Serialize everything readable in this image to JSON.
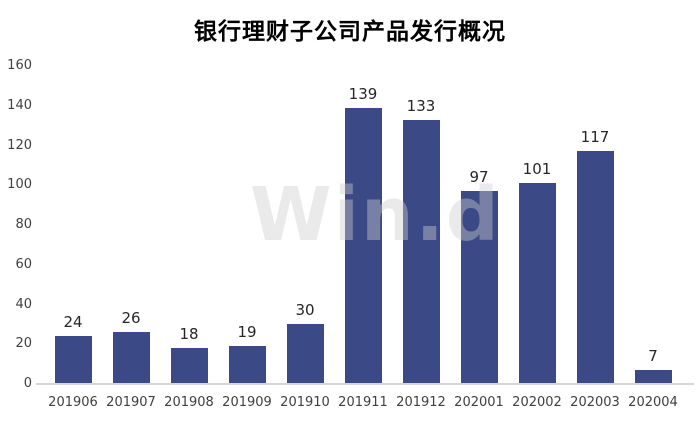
{
  "chart_data": {
    "type": "bar",
    "title": "银行理财子公司产品发行概况",
    "categories": [
      "201906",
      "201907",
      "201908",
      "201909",
      "201910",
      "201911",
      "201912",
      "202001",
      "202002",
      "202003",
      "202004"
    ],
    "values": [
      24,
      26,
      18,
      19,
      30,
      139,
      133,
      97,
      101,
      117,
      7
    ],
    "xlabel": "",
    "ylabel": "",
    "ylim": [
      0,
      160
    ],
    "yticks": [
      0,
      20,
      40,
      60,
      80,
      100,
      120,
      140,
      160
    ],
    "grid": false,
    "legend": "none",
    "data_labels": true,
    "colors": {
      "bar": "#3b4a87",
      "axis_line": "#d6d6d6",
      "tick_text": "#404040",
      "data_label_text": "#262626",
      "title_text": "#000000",
      "background": "#ffffff"
    }
  },
  "watermark": {
    "text": "Win.d"
  }
}
